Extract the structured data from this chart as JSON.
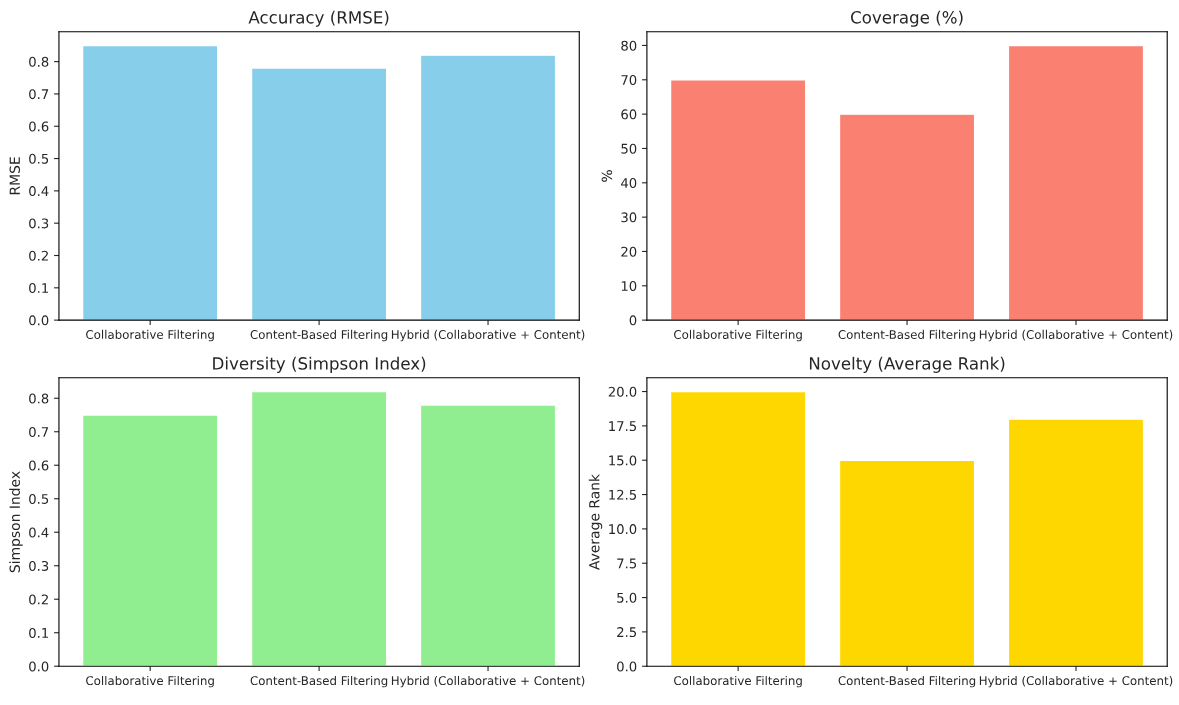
{
  "chart_data": [
    {
      "type": "bar",
      "title": "Accuracy (RMSE)",
      "ylabel": "RMSE",
      "categories": [
        "Collaborative Filtering",
        "Content-Based Filtering",
        "Hybrid (Collaborative + Content)"
      ],
      "values": [
        0.85,
        0.78,
        0.82
      ],
      "color": "#87ceeb",
      "ylim": [
        0,
        0.8925
      ],
      "yticks": [
        {
          "value": 0,
          "label": "0.0"
        },
        {
          "value": 0.1,
          "label": "0.1"
        },
        {
          "value": 0.2,
          "label": "0.2"
        },
        {
          "value": 0.3,
          "label": "0.3"
        },
        {
          "value": 0.4,
          "label": "0.4"
        },
        {
          "value": 0.5,
          "label": "0.5"
        },
        {
          "value": 0.6,
          "label": "0.6"
        },
        {
          "value": 0.7,
          "label": "0.7"
        },
        {
          "value": 0.8,
          "label": "0.8"
        }
      ]
    },
    {
      "type": "bar",
      "title": "Coverage (%)",
      "ylabel": "%",
      "categories": [
        "Collaborative Filtering",
        "Content-Based Filtering",
        "Hybrid (Collaborative + Content)"
      ],
      "values": [
        70,
        60,
        80
      ],
      "color": "#fa8072",
      "ylim": [
        0,
        84
      ],
      "yticks": [
        0,
        10,
        20,
        30,
        40,
        50,
        60,
        70,
        80
      ]
    },
    {
      "type": "bar",
      "title": "Diversity (Simpson Index)",
      "ylabel": "Simpson Index",
      "categories": [
        "Collaborative Filtering",
        "Content-Based Filtering",
        "Hybrid (Collaborative + Content)"
      ],
      "values": [
        0.75,
        0.82,
        0.78
      ],
      "color": "#90ee90",
      "ylim": [
        0,
        0.861
      ],
      "yticks": [
        {
          "value": 0,
          "label": "0.0"
        },
        {
          "value": 0.1,
          "label": "0.1"
        },
        {
          "value": 0.2,
          "label": "0.2"
        },
        {
          "value": 0.3,
          "label": "0.3"
        },
        {
          "value": 0.4,
          "label": "0.4"
        },
        {
          "value": 0.5,
          "label": "0.5"
        },
        {
          "value": 0.6,
          "label": "0.6"
        },
        {
          "value": 0.7,
          "label": "0.7"
        },
        {
          "value": 0.8,
          "label": "0.8"
        }
      ]
    },
    {
      "type": "bar",
      "title": "Novelty (Average Rank)",
      "ylabel": "Average Rank",
      "categories": [
        "Collaborative Filtering",
        "Content-Based Filtering",
        "Hybrid (Collaborative + Content)"
      ],
      "values": [
        20,
        15,
        18
      ],
      "color": "#ffd700",
      "ylim": [
        0,
        21
      ],
      "yticks": [
        {
          "value": 0,
          "label": "0.0"
        },
        {
          "value": 2.5,
          "label": "2.5"
        },
        {
          "value": 5,
          "label": "5.0"
        },
        {
          "value": 7.5,
          "label": "7.5"
        },
        {
          "value": 10,
          "label": "10.0"
        },
        {
          "value": 12.5,
          "label": "12.5"
        },
        {
          "value": 15,
          "label": "15.0"
        },
        {
          "value": 17.5,
          "label": "17.5"
        },
        {
          "value": 20,
          "label": "20.0"
        }
      ]
    }
  ]
}
